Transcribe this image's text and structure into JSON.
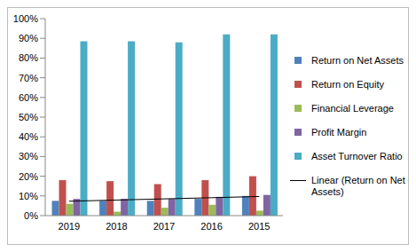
{
  "chart_data": {
    "type": "bar",
    "categories": [
      "2019",
      "2018",
      "2017",
      "2016",
      "2015"
    ],
    "series": [
      {
        "name": "Return on Net Assets",
        "color": "#4f81bd",
        "values": [
          7.5,
          7.5,
          7.5,
          8.5,
          10
        ]
      },
      {
        "name": "Return on Equity",
        "color": "#c0504d",
        "values": [
          18,
          17.5,
          16,
          18,
          20
        ]
      },
      {
        "name": "Financial Leverage",
        "color": "#9bbb59",
        "values": [
          6,
          2,
          4,
          5.5,
          2.5
        ]
      },
      {
        "name": "Profit Margin",
        "color": "#8064a2",
        "values": [
          8.5,
          8.5,
          8.5,
          9.5,
          10.5
        ]
      },
      {
        "name": "Asset Turnover Ratio",
        "color": "#4bacc6",
        "values": [
          88.5,
          88.5,
          88,
          92,
          92
        ]
      },
      {
        "name": "Linear (Return on Net Assets)",
        "color": "#000000",
        "type": "line",
        "values": [
          7.3,
          7.9,
          8.5,
          9.1,
          9.7
        ]
      }
    ],
    "ylim": [
      0,
      100
    ],
    "yticks": [
      {
        "value": 0,
        "label": "0%"
      },
      {
        "value": 10,
        "label": "10%"
      },
      {
        "value": 20,
        "label": "20%"
      },
      {
        "value": 30,
        "label": "30%"
      },
      {
        "value": 40,
        "label": "40%"
      },
      {
        "value": 50,
        "label": "50%"
      },
      {
        "value": 60,
        "label": "60%"
      },
      {
        "value": 70,
        "label": "70%"
      },
      {
        "value": 80,
        "label": "80%"
      },
      {
        "value": 90,
        "label": "90%"
      },
      {
        "value": 100,
        "label": "100%"
      }
    ],
    "grid": false,
    "legend": "right"
  }
}
